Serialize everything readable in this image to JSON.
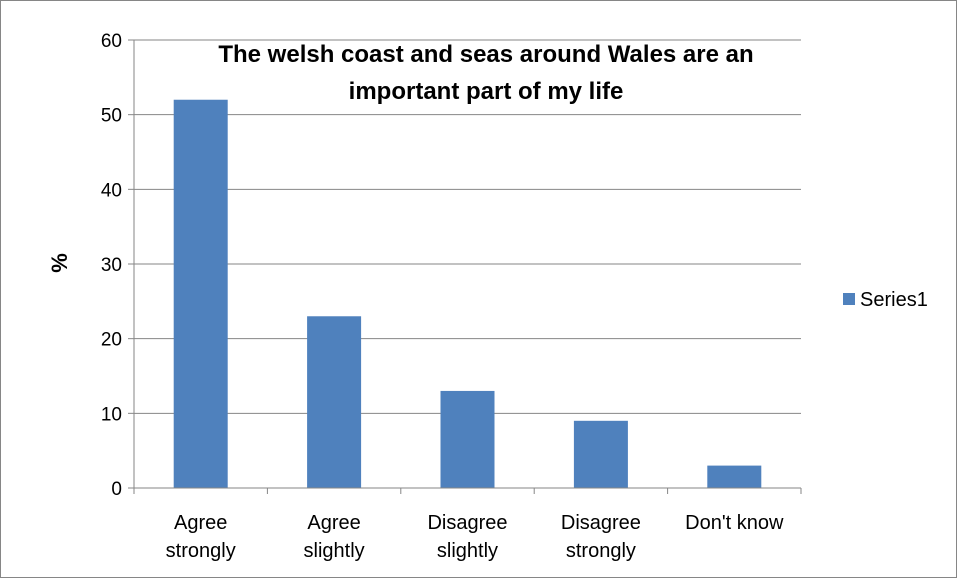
{
  "chart_data": {
    "type": "bar",
    "title_lines": [
      "The welsh coast and seas around Wales are an",
      "important part of my life"
    ],
    "xlabel": "",
    "ylabel": "%",
    "categories": [
      [
        "Agree",
        "strongly"
      ],
      [
        "Agree",
        "slightly"
      ],
      [
        "Disagree",
        "slightly"
      ],
      [
        "Disagree",
        "strongly"
      ],
      [
        "Don't know"
      ]
    ],
    "series": [
      {
        "name": "Series1",
        "values": [
          52,
          23,
          13,
          9,
          3
        ],
        "color": "#4f81bd"
      }
    ],
    "ylim": [
      0,
      60
    ],
    "yticks": [
      0,
      10,
      20,
      30,
      40,
      50,
      60
    ],
    "grid": true,
    "legend_position": "right"
  }
}
